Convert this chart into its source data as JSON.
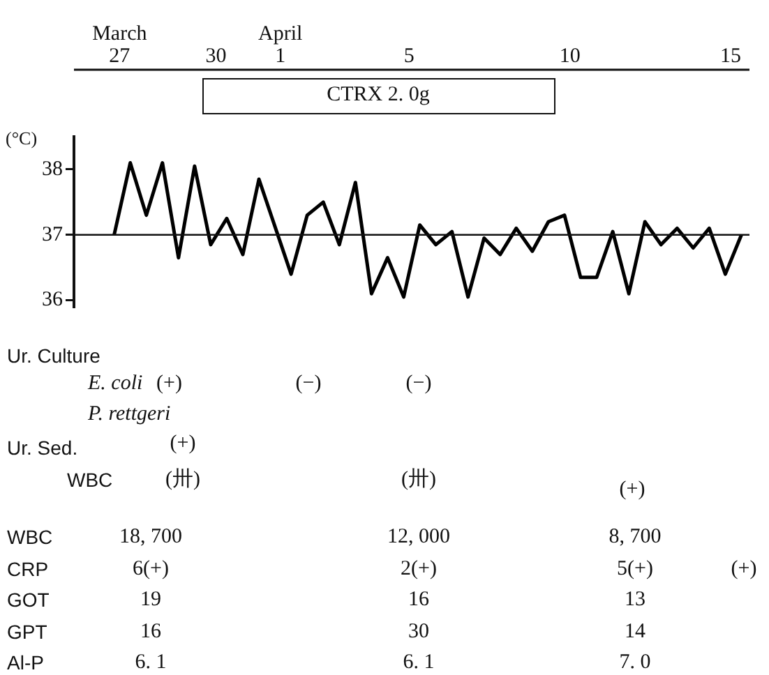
{
  "chart_data": {
    "type": "line",
    "ylabel": "(°C)",
    "x": [
      "--03-26T20:00",
      "--03-27T08:00",
      "--03-27T20:00",
      "--03-28T08:00",
      "--03-28T20:00",
      "--03-29T08:00",
      "--03-29T20:00",
      "--03-30T08:00",
      "--03-30T20:00",
      "--03-31T08:00",
      "--04-01T08:00",
      "--04-01T20:00",
      "--04-02T08:00",
      "--04-02T20:00",
      "--04-03T08:00",
      "--04-03T20:00",
      "--04-04T08:00",
      "--04-04T20:00",
      "--04-05T08:00",
      "--04-05T20:00",
      "--04-06T08:00",
      "--04-06T20:00",
      "--04-07T08:00",
      "--04-07T20:00",
      "--04-08T08:00",
      "--04-08T20:00",
      "--04-09T08:00",
      "--04-09T20:00",
      "--04-10T08:00",
      "--04-10T20:00",
      "--04-11T08:00",
      "--04-11T20:00",
      "--04-12T08:00",
      "--04-12T20:00",
      "--04-13T08:00",
      "--04-13T20:00",
      "--04-14T08:00",
      "--04-14T20:00",
      "--04-15T08:00"
    ],
    "series": [
      {
        "color": "#000000",
        "values": [
          37.0,
          38.1,
          37.3,
          38.1,
          36.65,
          38.05,
          36.85,
          37.25,
          36.7,
          37.85,
          36.4,
          37.3,
          37.5,
          36.85,
          37.8,
          36.1,
          36.65,
          36.05,
          37.15,
          36.85,
          37.05,
          36.05,
          36.95,
          36.7,
          37.1,
          36.75,
          37.2,
          37.3,
          36.35,
          36.35,
          37.05,
          36.1,
          37.2,
          36.85,
          37.1,
          36.8,
          37.1,
          36.4,
          37.0
        ]
      }
    ],
    "xlim": [
      "--03-25T14:00",
      "--04-15T14:00"
    ],
    "xticks": [
      {
        "value": "--03-27",
        "label": "March\n27"
      },
      {
        "value": "--03-30",
        "label": "30"
      },
      {
        "value": "--04-01",
        "label": "April\n1"
      },
      {
        "value": "--04-05",
        "label": "5"
      },
      {
        "value": "--04-10",
        "label": "10"
      },
      {
        "value": "--04-15",
        "label": "15"
      }
    ],
    "ylim": [
      35.9,
      38.5
    ],
    "yticks": [
      36,
      37,
      38
    ],
    "ref_lines": [
      {
        "axis": "y",
        "value": 37
      }
    ],
    "annotations": [
      "CTRX 2. 0g",
      "Ur. Culture",
      "E. coli",
      "(+)",
      "(−)",
      "(−)",
      "P. rettgeri",
      "Ur. Sed.",
      "(+)",
      "WBC",
      "(卅)",
      "(卅)",
      "(+)",
      "WBC",
      "18, 700",
      "12, 000",
      "8, 700",
      "CRP",
      "6(+)",
      "2(+)",
      "5(+)",
      "(+)",
      "GOT",
      "19",
      "16",
      "13",
      "GPT",
      "16",
      "30",
      "14",
      "Al-P",
      "6. 1",
      "6. 1",
      "7. 0"
    ]
  }
}
